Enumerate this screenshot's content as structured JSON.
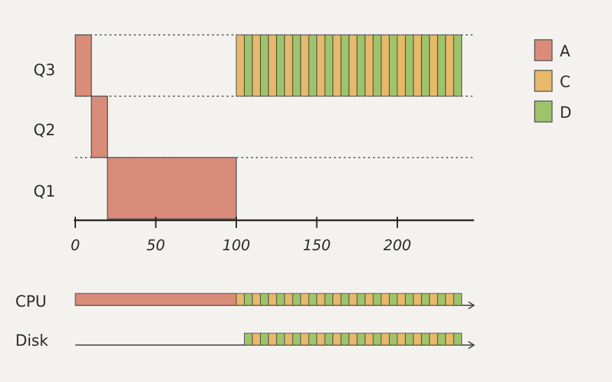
{
  "chart_data": {
    "type": "timeline",
    "title": "",
    "xlabel": "",
    "ylabel": "",
    "x_ticks": [
      0,
      50,
      100,
      150,
      200
    ],
    "xlim": [
      0,
      240
    ],
    "queues": [
      "Q3",
      "Q2",
      "Q1"
    ],
    "legend": [
      {
        "name": "A",
        "color": "#d98c7a"
      },
      {
        "name": "C",
        "color": "#e7b96a"
      },
      {
        "name": "D",
        "color": "#9ec36a"
      }
    ],
    "legend_position": "top-right",
    "queue_schedule": [
      {
        "queue": "Q3",
        "job": "A",
        "start": 0,
        "end": 10
      },
      {
        "queue": "Q2",
        "job": "A",
        "start": 10,
        "end": 20
      },
      {
        "queue": "Q1",
        "job": "A",
        "start": 20,
        "end": 100
      },
      {
        "queue": "Q3",
        "job": "C/D alternating",
        "start": 100,
        "end": 240,
        "slice": 5,
        "first_job": "C"
      }
    ],
    "resource_rows": [
      {
        "name": "CPU",
        "segments": [
          {
            "job": "A",
            "start": 0,
            "end": 100
          },
          {
            "job": "C/D alternating",
            "start": 100,
            "end": 240,
            "slice": 5,
            "first_job": "C"
          }
        ]
      },
      {
        "name": "Disk",
        "segments": [
          {
            "job": "C/D alternating",
            "start": 105,
            "end": 240,
            "slice": 5,
            "first_job": "D"
          }
        ]
      }
    ]
  }
}
